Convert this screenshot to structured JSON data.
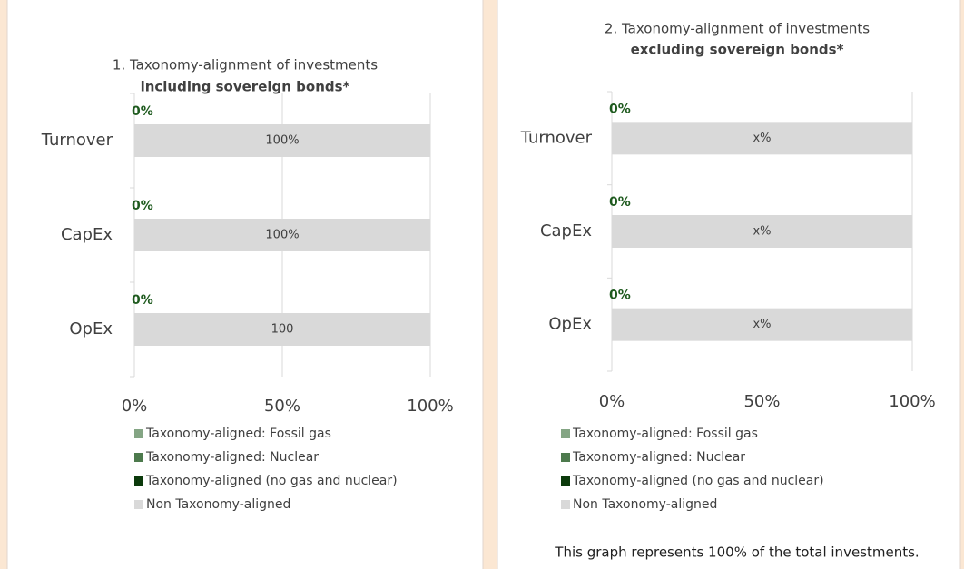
{
  "chart_data": [
    {
      "type": "bar",
      "orientation": "horizontal",
      "stacked": true,
      "title": "1. Taxonomy-alignment of investments",
      "subtitle": "including sovereign bonds*",
      "categories": [
        "Turnover",
        "CapEx",
        "OpEx"
      ],
      "series": [
        {
          "name": "Taxonomy-aligned: Fossil gas",
          "color": "#84a584",
          "values": [
            0,
            0,
            0
          ]
        },
        {
          "name": "Taxonomy-aligned: Nuclear",
          "color": "#4d7a4d",
          "values": [
            0,
            0,
            0
          ]
        },
        {
          "name": "Taxonomy-aligned (no gas and nuclear)",
          "color": "#0b3a0b",
          "values": [
            0,
            0,
            0
          ],
          "value_labels": [
            "0%",
            "0%",
            "0%"
          ]
        },
        {
          "name": "Non Taxonomy-aligned",
          "color": "#d9d9d9",
          "values": [
            100,
            100,
            100
          ],
          "value_labels": [
            "100%",
            "100%",
            "100"
          ]
        }
      ],
      "xlim": [
        0,
        100
      ],
      "xticks": [
        {
          "value": 0,
          "label": "0%"
        },
        {
          "value": 50,
          "label": "50%"
        },
        {
          "value": 100,
          "label": "100%"
        }
      ],
      "grid": true,
      "legend": "bottom"
    },
    {
      "type": "bar",
      "orientation": "horizontal",
      "stacked": true,
      "title": "2. Taxonomy-alignment of investments",
      "subtitle": "excluding sovereign bonds*",
      "categories": [
        "Turnover",
        "CapEx",
        "OpEx"
      ],
      "series": [
        {
          "name": "Taxonomy-aligned: Fossil gas",
          "color": "#84a584",
          "values": [
            0,
            0,
            0
          ]
        },
        {
          "name": "Taxonomy-aligned: Nuclear",
          "color": "#4d7a4d",
          "values": [
            0,
            0,
            0
          ]
        },
        {
          "name": "Taxonomy-aligned (no gas and nuclear)",
          "color": "#0b3a0b",
          "values": [
            0,
            0,
            0
          ],
          "value_labels": [
            "0%",
            "0%",
            "0%"
          ]
        },
        {
          "name": "Non Taxonomy-aligned",
          "color": "#d9d9d9",
          "values": [
            100,
            100,
            100
          ],
          "value_labels": [
            "x%",
            "x%",
            "x%"
          ]
        }
      ],
      "xlim": [
        0,
        100
      ],
      "xticks": [
        {
          "value": 0,
          "label": "0%"
        },
        {
          "value": 50,
          "label": "50%"
        },
        {
          "value": 100,
          "label": "100%"
        }
      ],
      "grid": true,
      "legend": "bottom",
      "note": "This graph represents 100% of the total investments."
    }
  ]
}
